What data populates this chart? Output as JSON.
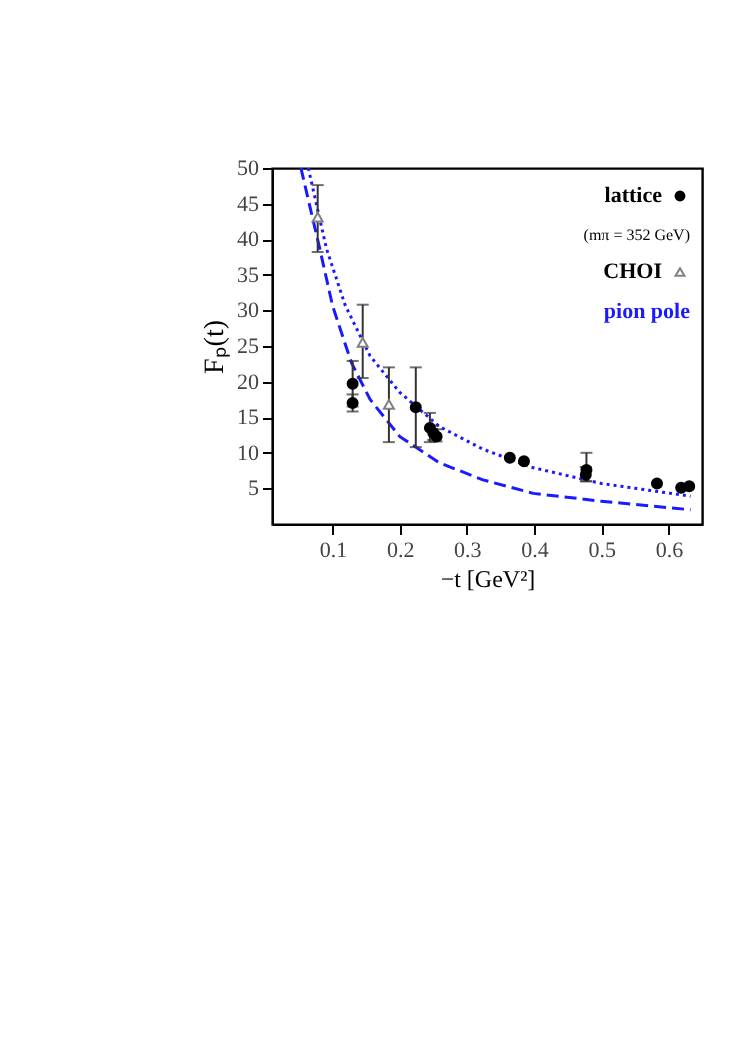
{
  "chart_data": {
    "type": "scatter",
    "xlabel": "−t [GeV²]",
    "ylabel": "Fₚ(t)",
    "xlim": [
      0.01,
      0.65
    ],
    "ylim": [
      0,
      50
    ],
    "xticks": [
      0.1,
      0.2,
      0.3,
      0.4,
      0.5,
      0.6
    ],
    "yticks": [
      5,
      10,
      15,
      20,
      25,
      30,
      35,
      40,
      45,
      50
    ],
    "grid": false,
    "legend": "top right",
    "annotations": [
      "(mπ = 352 GeV)"
    ],
    "series": [
      {
        "name": "lattice",
        "type": "scatter",
        "marker": "circle",
        "color": "#000000",
        "x": [
          0.13,
          0.13,
          0.224,
          0.245,
          0.25,
          0.255,
          0.364,
          0.385,
          0.477,
          0.478,
          0.583,
          0.619,
          0.631
        ],
        "values": [
          17.0,
          19.7,
          16.4,
          13.5,
          12.8,
          12.3,
          9.3,
          8.8,
          6.9,
          7.6,
          5.7,
          5.1,
          5.3
        ],
        "errors": [
          [
            15.8,
            18.2
          ],
          [
            16.5,
            22.9
          ],
          [
            10.8,
            22.0
          ],
          [
            11.5,
            15.6
          ],
          [
            11.8,
            13.8
          ],
          [
            11.6,
            13.3
          ],
          null,
          null,
          [
            6.0,
            8.0
          ],
          [
            6.0,
            10.0
          ],
          null,
          null,
          null
        ]
      },
      {
        "name": "CHOI",
        "type": "scatter",
        "marker": "triangle",
        "color": "#808080",
        "x": [
          0.078,
          0.145,
          0.184
        ],
        "values": [
          43.1,
          25.5,
          16.8
        ],
        "errors": [
          [
            38.2,
            47.6
          ],
          [
            20.5,
            30.8
          ],
          [
            11.5,
            22.0
          ]
        ]
      },
      {
        "name": "pion pole",
        "type": "line",
        "line_style": "dashed",
        "color": "#1a1aff",
        "x": [
          0.053,
          0.081,
          0.1,
          0.128,
          0.156,
          0.2,
          0.259,
          0.324,
          0.399,
          0.5,
          0.633
        ],
        "values": [
          50,
          38.7,
          30.7,
          22.7,
          17.5,
          12.3,
          8.6,
          6.2,
          4.3,
          3.2,
          2.0
        ]
      },
      {
        "type": "line",
        "line_style": "dotted",
        "color": "#1a1aff",
        "x": [
          0.064,
          0.091,
          0.119,
          0.156,
          0.2,
          0.259,
          0.324,
          0.399,
          0.5,
          0.633
        ],
        "values": [
          50,
          38.7,
          30.7,
          23.6,
          18.5,
          13.7,
          10.5,
          7.9,
          5.7,
          3.9
        ]
      }
    ]
  }
}
